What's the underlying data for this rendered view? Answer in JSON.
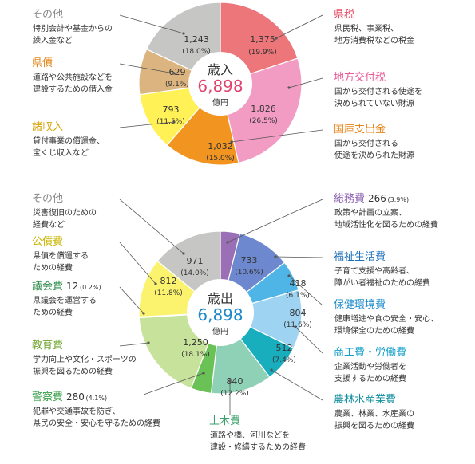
{
  "colors": {
    "leader": "#555555",
    "wedge_stroke": "#ffffff",
    "center_fill": "#ffffff",
    "center_label": "#333333",
    "value_text": "#333333",
    "desc_text": "#333333",
    "revenue_total": "#e0436e",
    "expenditure_total": "#1e88c8"
  },
  "chart_data": [
    {
      "type": "pie",
      "variant": "donut",
      "title": "歳入",
      "total": "6,898",
      "unit": "億円",
      "slices": [
        {
          "name": "県税",
          "value": 1375,
          "value_label": "1,375",
          "percent_label": "(19.9%)",
          "desc": [
            "県民税、事業税、",
            "地方消費税などの税金"
          ],
          "color": "#ed767a",
          "name_color": "#e84a5f"
        },
        {
          "name": "地方交付税",
          "value": 1826,
          "value_label": "1,826",
          "percent_label": "(26.5%)",
          "desc": [
            "国から交付される使途を",
            "決められていない財源"
          ],
          "color": "#f29cc4",
          "name_color": "#e85a98"
        },
        {
          "name": "国庫支出金",
          "value": 1032,
          "value_label": "1,032",
          "percent_label": "(15.0%)",
          "desc": [
            "国から交付される",
            "使途を決められた財源"
          ],
          "color": "#f19420",
          "name_color": "#e8851a"
        },
        {
          "name": "諸収入",
          "value": 793,
          "value_label": "793",
          "percent_label": "(11.5%)",
          "desc": [
            "貸付事業の償還金、",
            "宝くじ収入など"
          ],
          "color": "#fff156",
          "name_color": "#d6a000"
        },
        {
          "name": "県債",
          "value": 629,
          "value_label": "629",
          "percent_label": "(9.1%)",
          "desc": [
            "道路や公共施設などを",
            "建設するための借入金"
          ],
          "color": "#dcb480",
          "name_color": "#e0851a"
        },
        {
          "name": "その他",
          "value": 1243,
          "value_label": "1,243",
          "percent_label": "(18.0%)",
          "desc": [
            "特別会計や基金からの",
            "繰入金など"
          ],
          "color": "#c6c6c5",
          "name_color": "#888888"
        }
      ]
    },
    {
      "type": "pie",
      "variant": "donut",
      "title": "歳出",
      "total": "6,898",
      "unit": "億円",
      "slices": [
        {
          "name": "総務費",
          "value": 266,
          "value_label": "",
          "percent_label": "",
          "aside_value": "266",
          "aside_percent": "(3.9%)",
          "desc": [
            "政策や計画の立案、",
            "地域活性化を図るための経費"
          ],
          "color": "#9b6fb6",
          "name_color": "#8b5fb0"
        },
        {
          "name": "福祉生活費",
          "value": 733,
          "value_label": "733",
          "percent_label": "(10.6%)",
          "desc": [
            "子育て支援や高齢者、",
            "障がい者福祉のための経費"
          ],
          "color": "#6d88ce",
          "name_color": "#1e6fba"
        },
        {
          "name": "保健環境費",
          "value": 418,
          "value_label": "418",
          "percent_label": "(6.1%)",
          "desc": [
            "健康増進や食の安全・安心、",
            "環境保全のための経費"
          ],
          "color": "#4fb4e6",
          "name_color": "#1e8ccb"
        },
        {
          "name": "商工費・労働費",
          "value": 804,
          "value_label": "804",
          "percent_label": "(11.6%)",
          "desc": [
            "企業活動や労働者を",
            "支援するための経費"
          ],
          "color": "#9ed3f2",
          "name_color": "#16a0c8"
        },
        {
          "name": "農林水産業費",
          "value": 512,
          "value_label": "512",
          "percent_label": "(7.4%)",
          "desc": [
            "農業、林業、水産業の",
            "振興を図るための経費"
          ],
          "color": "#19aebe",
          "name_color": "#108e9c"
        },
        {
          "name": "土木費",
          "value": 840,
          "value_label": "840",
          "percent_label": "(12.2%)",
          "desc": [
            "道路や橋、河川などを",
            "建設・修繕するための経費"
          ],
          "color": "#8fd1b6",
          "name_color": "#3aa06a"
        },
        {
          "name": "警察費",
          "value": 280,
          "value_label": "",
          "percent_label": "",
          "aside_value": "280",
          "aside_percent": "(4.1%)",
          "desc": [
            "犯罪や交通事故を防ぎ、",
            "県民の安全・安心を守るための経費"
          ],
          "color": "#6ac155",
          "name_color": "#3aa04a"
        },
        {
          "name": "教育費",
          "value": 1250,
          "value_label": "1,250",
          "percent_label": "(18.1%)",
          "desc": [
            "学力向上や文化・スポーツの",
            "振興を図るための経費"
          ],
          "color": "#c7e29a",
          "name_color": "#6fa52e"
        },
        {
          "name": "議会費",
          "value": 12,
          "value_label": "",
          "percent_label": "",
          "aside_value": "12",
          "aside_percent": "(0.2%)",
          "desc": [
            "県議会を運営する",
            "ための経費"
          ],
          "color": "#2c9a4d",
          "name_color": "#2c8a4a"
        },
        {
          "name": "公債費",
          "value": 812,
          "value_label": "812",
          "percent_label": "(11.8%)",
          "desc": [
            "県債を償還する",
            "ための経費"
          ],
          "color": "#fbf26e",
          "name_color": "#c8b400"
        },
        {
          "name": "その他",
          "value": 971,
          "value_label": "971",
          "percent_label": "(14.0%)",
          "desc": [
            "災害復旧のための",
            "経費など"
          ],
          "color": "#c6c6c5",
          "name_color": "#888888"
        }
      ]
    }
  ]
}
